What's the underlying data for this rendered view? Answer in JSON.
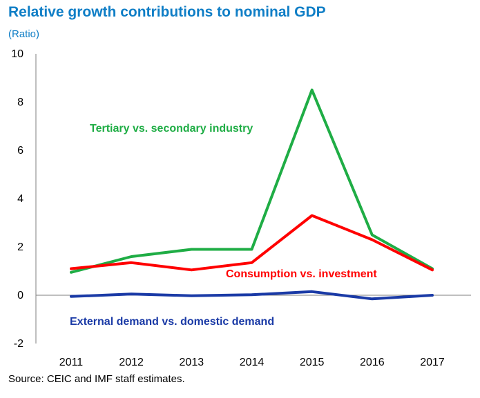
{
  "chart_data": {
    "type": "line",
    "title": "Relative growth contributions to nominal GDP",
    "ylabel": "(Ratio)",
    "source": "Source: CEIC and IMF staff estimates.",
    "categories": [
      "2011",
      "2012",
      "2013",
      "2014",
      "2015",
      "2016",
      "2017"
    ],
    "ylim": [
      -2,
      10
    ],
    "yticks": [
      -2,
      0,
      2,
      4,
      6,
      8,
      10
    ],
    "grid": false,
    "series": [
      {
        "name": "Tertiary vs. secondary industry",
        "color": "#1fad45",
        "values": [
          0.95,
          1.6,
          1.9,
          1.9,
          8.5,
          2.5,
          1.1
        ]
      },
      {
        "name": "Consumption vs. investment",
        "color": "#ff0000",
        "values": [
          1.1,
          1.35,
          1.05,
          1.35,
          3.3,
          2.3,
          1.05
        ]
      },
      {
        "name": "External demand vs. domestic demand",
        "color": "#1a3aa6",
        "values": [
          -0.05,
          0.05,
          -0.02,
          0.02,
          0.15,
          -0.15,
          0.0
        ]
      }
    ]
  }
}
